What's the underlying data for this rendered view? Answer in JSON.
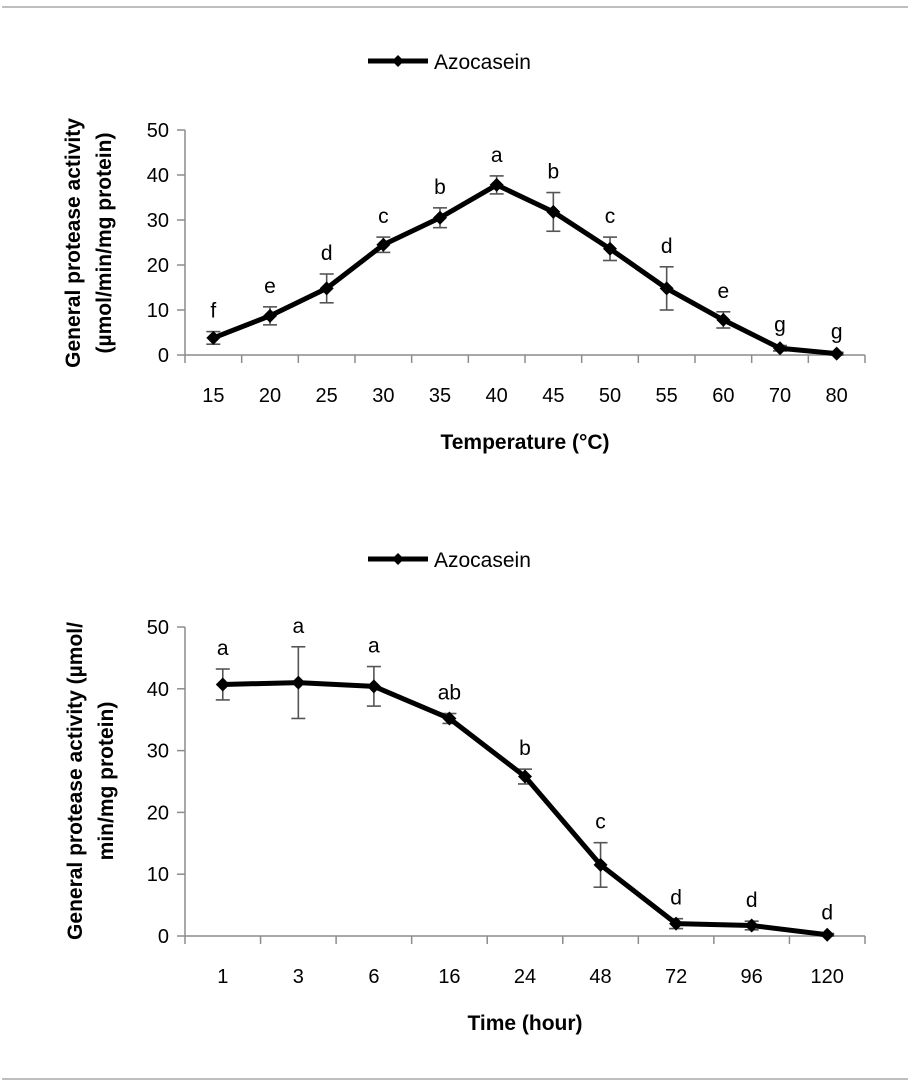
{
  "colors": {
    "line": "#000000",
    "axis": "#8c8c8c",
    "errorbar": "#555555",
    "rule": "#bfbfbf"
  },
  "chart_data": [
    {
      "type": "line",
      "categories": [
        "15",
        "20",
        "25",
        "30",
        "35",
        "40",
        "45",
        "50",
        "55",
        "60",
        "70",
        "80"
      ],
      "series": [
        {
          "name": "Azocasein",
          "values": [
            3.8,
            8.7,
            14.8,
            24.5,
            30.5,
            37.8,
            31.8,
            23.6,
            14.8,
            7.8,
            1.5,
            0.3
          ],
          "errors": [
            1.4,
            2.0,
            3.2,
            1.7,
            2.2,
            2.0,
            4.3,
            2.6,
            4.8,
            1.8,
            0.6,
            0.3
          ],
          "labels": [
            "f",
            "e",
            "d",
            "c",
            "b",
            "a",
            "b",
            "c",
            "d",
            "e",
            "g",
            "g"
          ]
        }
      ],
      "xlabel": "Temperature (°C)",
      "ylabel_lines": [
        "General protease activity",
        "(µmol/min/mg protein)"
      ],
      "yticks": [
        "0",
        "10",
        "20",
        "30",
        "40",
        "50"
      ],
      "ylim": [
        0,
        50
      ],
      "legend": "top-center",
      "grid": false
    },
    {
      "type": "line",
      "categories": [
        "1",
        "3",
        "6",
        "16",
        "24",
        "48",
        "72",
        "96",
        "120"
      ],
      "series": [
        {
          "name": "Azocasein",
          "values": [
            40.7,
            41.0,
            40.4,
            35.2,
            25.8,
            11.5,
            2.0,
            1.7,
            0.2
          ],
          "errors": [
            2.5,
            5.8,
            3.2,
            0.8,
            1.2,
            3.6,
            0.8,
            0.7,
            0.2
          ],
          "labels": [
            "a",
            "a",
            "a",
            "ab",
            "b",
            "c",
            "d",
            "d",
            "d"
          ]
        }
      ],
      "xlabel": "Time (hour)",
      "ylabel_lines": [
        "General protease activity (µmol/",
        "min/mg protein)"
      ],
      "yticks": [
        "0",
        "10",
        "20",
        "30",
        "40",
        "50"
      ],
      "ylim": [
        0,
        50
      ],
      "legend": "top-center",
      "grid": false
    }
  ]
}
